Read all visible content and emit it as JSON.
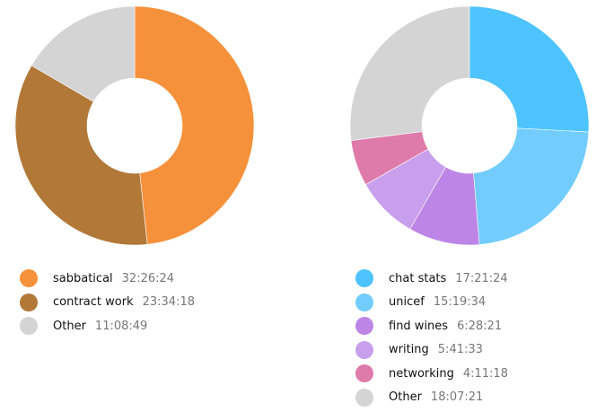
{
  "chart_data": [
    {
      "type": "pie",
      "variant": "donut",
      "title": "",
      "total_seconds": 241771,
      "slices": [
        {
          "label": "sabbatical",
          "value": "32:26:24",
          "seconds": 116784,
          "color": "#F6913B"
        },
        {
          "label": "contract work",
          "value": "23:34:18",
          "seconds": 84858,
          "color": "#B27838"
        },
        {
          "label": "Other",
          "value": "11:08:49",
          "seconds": 40129,
          "color": "#D4D4D4"
        }
      ],
      "legend_position": "bottom"
    },
    {
      "type": "pie",
      "variant": "donut",
      "title": "",
      "total_seconds": 241771,
      "slices": [
        {
          "label": "chat stats",
          "value": "17:21:24",
          "seconds": 62484,
          "color": "#4DC3FF"
        },
        {
          "label": "unicef",
          "value": "15:19:34",
          "seconds": 55174,
          "color": "#72CDFE"
        },
        {
          "label": "find wines",
          "value": "6:28:21",
          "seconds": 23301,
          "color": "#BC85E6"
        },
        {
          "label": "writing",
          "value": "5:41:33",
          "seconds": 20493,
          "color": "#C89FEC"
        },
        {
          "label": "networking",
          "value": "4:11:18",
          "seconds": 15078,
          "color": "#DF7BAA"
        },
        {
          "label": "Other",
          "value": "18:07:21",
          "seconds": 65241,
          "color": "#D4D4D4"
        }
      ],
      "legend_position": "bottom"
    }
  ],
  "legends": {
    "left": [
      {
        "label": "sabbatical",
        "value": "32:26:24"
      },
      {
        "label": "contract work",
        "value": "23:34:18"
      },
      {
        "label": "Other",
        "value": "11:08:49"
      }
    ],
    "right": [
      {
        "label": "chat stats",
        "value": "17:21:24"
      },
      {
        "label": "unicef",
        "value": "15:19:34"
      },
      {
        "label": "find wines",
        "value": "6:28:21"
      },
      {
        "label": "writing",
        "value": "5:41:33"
      },
      {
        "label": "networking",
        "value": "4:11:18"
      },
      {
        "label": "Other",
        "value": "18:07:21"
      }
    ]
  }
}
